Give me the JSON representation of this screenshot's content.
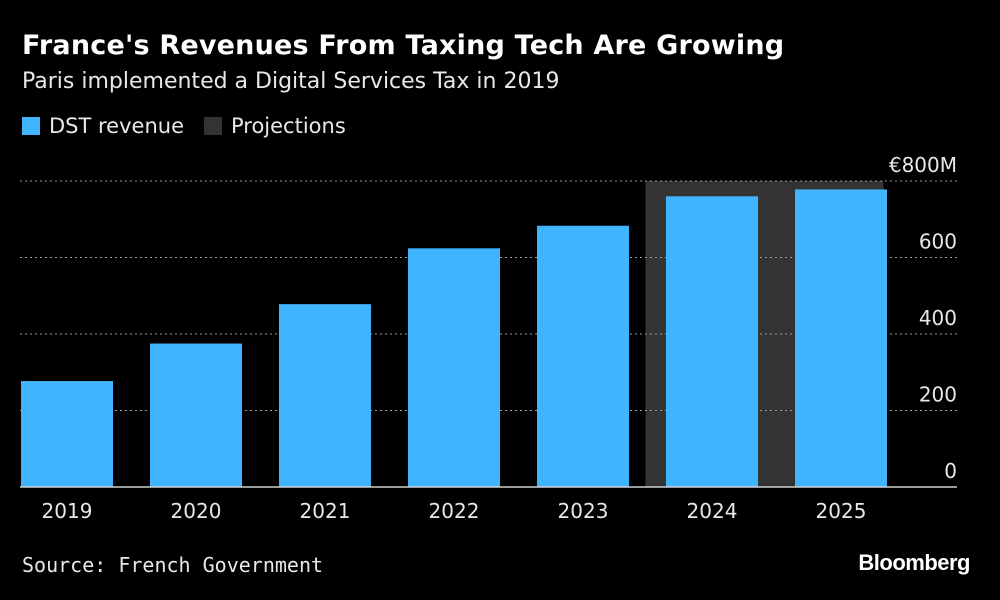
{
  "header": {
    "title": "France's Revenues From Taxing Tech Are Growing",
    "subtitle": "Paris implemented a Digital Services Tax in 2019"
  },
  "legend": [
    {
      "label": "DST revenue",
      "color": "#40b4ff"
    },
    {
      "label": "Projections",
      "color": "#333333"
    }
  ],
  "footer": {
    "source": "Source: French Government",
    "brand": "Bloomberg"
  },
  "chart_data": {
    "type": "bar",
    "categories": [
      "2019",
      "2020",
      "2021",
      "2022",
      "2023",
      "2024",
      "2025"
    ],
    "series": [
      {
        "name": "DST revenue",
        "values": [
          277,
          375,
          478,
          624,
          683,
          760,
          778
        ],
        "color": "#40b4ff"
      }
    ],
    "projection_categories": [
      "2024",
      "2025"
    ],
    "projection_color": "#333333",
    "ylim": [
      0,
      800
    ],
    "yticks": [
      0,
      200,
      400,
      600,
      800
    ],
    "ytick_labels": [
      "0",
      "200",
      "400",
      "600",
      "€800M"
    ],
    "title": "France's Revenues From Taxing Tech Are Growing",
    "xlabel": "",
    "ylabel": "",
    "grid": true,
    "legend_position": "top-left"
  }
}
